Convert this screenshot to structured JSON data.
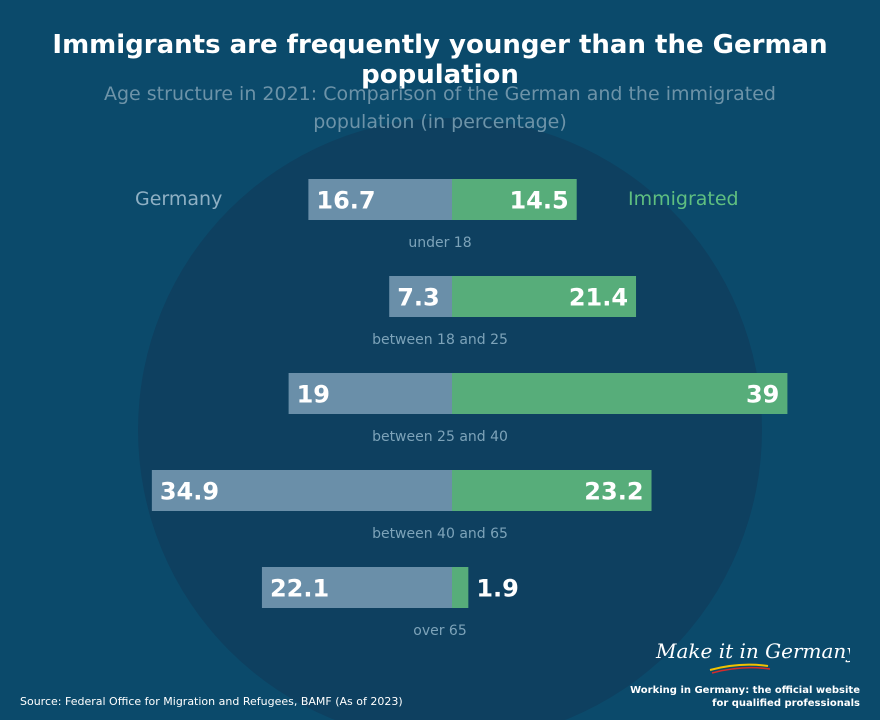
{
  "title": "Immigrants are frequently younger than the German population",
  "subtitle": "Age structure in 2021: Comparison of the German and the immigrated population (in percentage)",
  "legend": {
    "left": "Germany",
    "right": "Immigrated"
  },
  "source": "Source: Federal Office for Migration and Refugees, BAMF (As of 2023)",
  "brand": {
    "logo_text": "Make it in Germany",
    "tagline_line1": "Working in Germany: the official website",
    "tagline_line2": "for qualified professionals"
  },
  "colors": {
    "background": "#0b4a6b",
    "circle": "#0e4060",
    "germany": "#6a8fa9",
    "immigrated": "#57ad7a",
    "label": "#7da3b9"
  },
  "chart_data": {
    "type": "bar",
    "orientation": "horizontal-diverging",
    "title": "Immigrants are frequently younger than the German population",
    "subtitle": "Age structure in 2021: Comparison of the German and the immigrated population (in percentage)",
    "unit": "percent",
    "categories": [
      "under 18",
      "between 18 and 25",
      "between 25 and 40",
      "between 40 and 65",
      "over 65"
    ],
    "series": [
      {
        "name": "Germany",
        "side": "left",
        "values": [
          16.7,
          7.3,
          19,
          34.9,
          22.1
        ]
      },
      {
        "name": "Immigrated",
        "side": "right",
        "values": [
          14.5,
          21.4,
          39,
          23.2,
          1.9
        ]
      }
    ],
    "value_labels": {
      "Germany": [
        "16.7",
        "7.3",
        "19",
        "34.9",
        "22.1"
      ],
      "Immigrated": [
        "14.5",
        "21.4",
        "39",
        "23.2",
        "1.9"
      ]
    },
    "xlim": [
      0,
      39
    ],
    "grid": false,
    "legend_position": "top"
  }
}
